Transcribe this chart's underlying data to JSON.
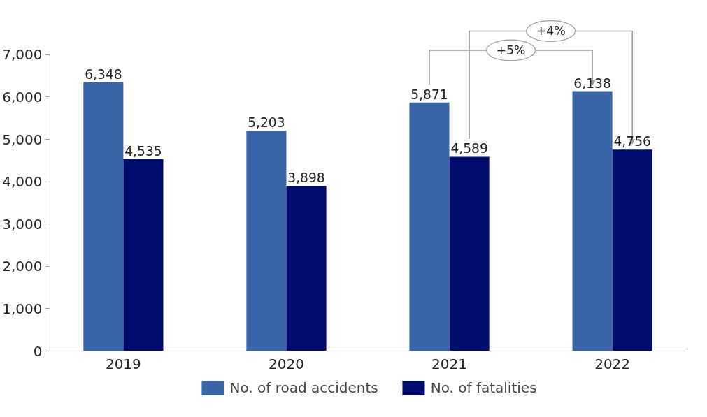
{
  "chart_data": {
    "type": "bar",
    "categories": [
      "2019",
      "2020",
      "2021",
      "2022"
    ],
    "series": [
      {
        "name": "No. of road accidents",
        "color": "#3a64a8",
        "values": [
          6348,
          5203,
          5871,
          6138
        ],
        "value_labels": [
          "6,348",
          "5,203",
          "5,871",
          "6,138"
        ]
      },
      {
        "name": "No. of fatalities",
        "color": "#000c6b",
        "values": [
          4535,
          3898,
          4589,
          4756
        ],
        "value_labels": [
          "4,535",
          "3,898",
          "4,589",
          "4,756"
        ]
      }
    ],
    "ylim": [
      0,
      7000
    ],
    "yticks": [
      {
        "value": 0,
        "label": "0"
      },
      {
        "value": 1000,
        "label": "1,000"
      },
      {
        "value": 2000,
        "label": "2,000"
      },
      {
        "value": 3000,
        "label": "3,000"
      },
      {
        "value": 4000,
        "label": "4,000"
      },
      {
        "value": 5000,
        "label": "5,000"
      },
      {
        "value": 6000,
        "label": "6,000"
      },
      {
        "value": 7000,
        "label": "7,000"
      }
    ],
    "data_labels": true,
    "grid": false,
    "legend": "bottom",
    "annotations": [
      "+4%",
      "+5%"
    ]
  }
}
